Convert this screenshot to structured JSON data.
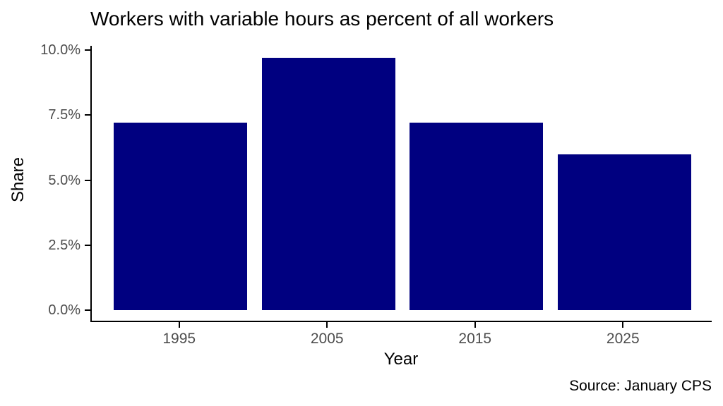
{
  "chart_data": {
    "type": "bar",
    "title": "Workers with variable hours as percent of all workers",
    "xlabel": "Year",
    "ylabel": "Share",
    "caption": "Source: January CPS",
    "categories": [
      "1995",
      "2005",
      "2015",
      "2025"
    ],
    "values": [
      7.2,
      9.7,
      7.2,
      6.0
    ],
    "value_unit": "percent",
    "ylim": [
      0,
      10
    ],
    "yticks": [
      0,
      2.5,
      5,
      7.5,
      10
    ],
    "ytick_labels": [
      "0.0%",
      "2.5%",
      "5.0%",
      "7.5%",
      "10.0%"
    ],
    "grid": "off",
    "legend_position": "none",
    "colors": {
      "bar": "#000080",
      "axis_text": "#4d4d4d",
      "axis_line": "#000000",
      "title_text": "#000000",
      "background": "#ffffff"
    }
  }
}
